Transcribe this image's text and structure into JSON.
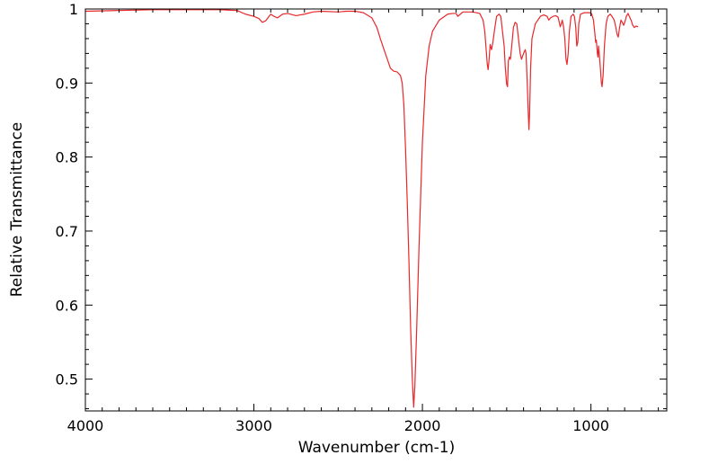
{
  "chart_data": {
    "type": "line",
    "title": "",
    "xlabel": "Wavenumber (cm-1)",
    "ylabel": "Relative Transmittance",
    "xlim": [
      4000,
      550
    ],
    "ylim": [
      0.457,
      1.0
    ],
    "x_reversed": true,
    "grid": false,
    "legend": "none",
    "x_ticks": [
      4000,
      3000,
      2000,
      1000
    ],
    "x_tick_labels": [
      "4000",
      "3000",
      "2000",
      "1000"
    ],
    "y_ticks": [
      1.0,
      0.9,
      0.8,
      0.7,
      0.6,
      0.5
    ],
    "y_tick_labels": [
      "1",
      "0.9",
      "0.8",
      "0.7",
      "0.6",
      "0.5"
    ],
    "series": [
      {
        "color": "#e8282b",
        "points": [
          [
            4000,
            0.997
          ],
          [
            3800,
            0.998
          ],
          [
            3600,
            0.999
          ],
          [
            3400,
            0.999
          ],
          [
            3200,
            0.999
          ],
          [
            3100,
            0.998
          ],
          [
            3050,
            0.993
          ],
          [
            3000,
            0.99
          ],
          [
            2970,
            0.987
          ],
          [
            2950,
            0.982
          ],
          [
            2930,
            0.984
          ],
          [
            2900,
            0.993
          ],
          [
            2880,
            0.99
          ],
          [
            2860,
            0.988
          ],
          [
            2830,
            0.993
          ],
          [
            2800,
            0.994
          ],
          [
            2750,
            0.991
          ],
          [
            2700,
            0.993
          ],
          [
            2650,
            0.996
          ],
          [
            2600,
            0.997
          ],
          [
            2500,
            0.996
          ],
          [
            2450,
            0.997
          ],
          [
            2400,
            0.997
          ],
          [
            2350,
            0.995
          ],
          [
            2300,
            0.988
          ],
          [
            2270,
            0.975
          ],
          [
            2250,
            0.96
          ],
          [
            2220,
            0.94
          ],
          [
            2190,
            0.92
          ],
          [
            2170,
            0.916
          ],
          [
            2150,
            0.915
          ],
          [
            2130,
            0.91
          ],
          [
            2120,
            0.9
          ],
          [
            2110,
            0.87
          ],
          [
            2100,
            0.81
          ],
          [
            2090,
            0.74
          ],
          [
            2080,
            0.66
          ],
          [
            2070,
            0.57
          ],
          [
            2060,
            0.5
          ],
          [
            2052,
            0.462
          ],
          [
            2045,
            0.49
          ],
          [
            2035,
            0.56
          ],
          [
            2020,
            0.68
          ],
          [
            2000,
            0.82
          ],
          [
            1980,
            0.91
          ],
          [
            1960,
            0.95
          ],
          [
            1940,
            0.97
          ],
          [
            1900,
            0.985
          ],
          [
            1850,
            0.993
          ],
          [
            1820,
            0.994
          ],
          [
            1800,
            0.994
          ],
          [
            1790,
            0.99
          ],
          [
            1775,
            0.993
          ],
          [
            1760,
            0.996
          ],
          [
            1700,
            0.996
          ],
          [
            1660,
            0.994
          ],
          [
            1640,
            0.985
          ],
          [
            1630,
            0.97
          ],
          [
            1620,
            0.94
          ],
          [
            1615,
            0.925
          ],
          [
            1610,
            0.918
          ],
          [
            1605,
            0.93
          ],
          [
            1598,
            0.952
          ],
          [
            1590,
            0.945
          ],
          [
            1582,
            0.955
          ],
          [
            1570,
            0.975
          ],
          [
            1560,
            0.99
          ],
          [
            1545,
            0.993
          ],
          [
            1535,
            0.99
          ],
          [
            1525,
            0.97
          ],
          [
            1515,
            0.95
          ],
          [
            1508,
            0.92
          ],
          [
            1500,
            0.898
          ],
          [
            1495,
            0.895
          ],
          [
            1490,
            0.93
          ],
          [
            1484,
            0.935
          ],
          [
            1478,
            0.932
          ],
          [
            1470,
            0.95
          ],
          [
            1460,
            0.975
          ],
          [
            1450,
            0.982
          ],
          [
            1440,
            0.98
          ],
          [
            1430,
            0.96
          ],
          [
            1420,
            0.94
          ],
          [
            1412,
            0.932
          ],
          [
            1400,
            0.94
          ],
          [
            1390,
            0.945
          ],
          [
            1385,
            0.94
          ],
          [
            1378,
            0.9
          ],
          [
            1372,
            0.86
          ],
          [
            1368,
            0.837
          ],
          [
            1364,
            0.86
          ],
          [
            1358,
            0.92
          ],
          [
            1350,
            0.96
          ],
          [
            1330,
            0.98
          ],
          [
            1300,
            0.99
          ],
          [
            1280,
            0.992
          ],
          [
            1260,
            0.99
          ],
          [
            1250,
            0.985
          ],
          [
            1240,
            0.988
          ],
          [
            1225,
            0.99
          ],
          [
            1210,
            0.991
          ],
          [
            1195,
            0.989
          ],
          [
            1182,
            0.976
          ],
          [
            1176,
            0.98
          ],
          [
            1170,
            0.985
          ],
          [
            1162,
            0.975
          ],
          [
            1155,
            0.96
          ],
          [
            1148,
            0.932
          ],
          [
            1142,
            0.925
          ],
          [
            1135,
            0.94
          ],
          [
            1128,
            0.97
          ],
          [
            1118,
            0.99
          ],
          [
            1105,
            0.993
          ],
          [
            1098,
            0.99
          ],
          [
            1090,
            0.975
          ],
          [
            1084,
            0.95
          ],
          [
            1078,
            0.955
          ],
          [
            1072,
            0.98
          ],
          [
            1062,
            0.993
          ],
          [
            1040,
            0.995
          ],
          [
            1020,
            0.995
          ],
          [
            1005,
            0.995
          ],
          [
            995,
            0.993
          ],
          [
            985,
            0.985
          ],
          [
            978,
            0.97
          ],
          [
            972,
            0.955
          ],
          [
            968,
            0.958
          ],
          [
            962,
            0.94
          ],
          [
            958,
            0.935
          ],
          [
            955,
            0.95
          ],
          [
            950,
            0.938
          ],
          [
            944,
            0.92
          ],
          [
            938,
            0.9
          ],
          [
            934,
            0.895
          ],
          [
            928,
            0.91
          ],
          [
            920,
            0.95
          ],
          [
            910,
            0.98
          ],
          [
            900,
            0.99
          ],
          [
            885,
            0.993
          ],
          [
            875,
            0.99
          ],
          [
            862,
            0.985
          ],
          [
            852,
            0.975
          ],
          [
            845,
            0.966
          ],
          [
            838,
            0.962
          ],
          [
            830,
            0.975
          ],
          [
            822,
            0.985
          ],
          [
            814,
            0.982
          ],
          [
            806,
            0.978
          ],
          [
            798,
            0.983
          ],
          [
            790,
            0.99
          ],
          [
            780,
            0.994
          ],
          [
            772,
            0.99
          ],
          [
            762,
            0.985
          ],
          [
            752,
            0.978
          ],
          [
            742,
            0.975
          ],
          [
            732,
            0.977
          ],
          [
            720,
            0.976
          ]
        ]
      }
    ]
  }
}
